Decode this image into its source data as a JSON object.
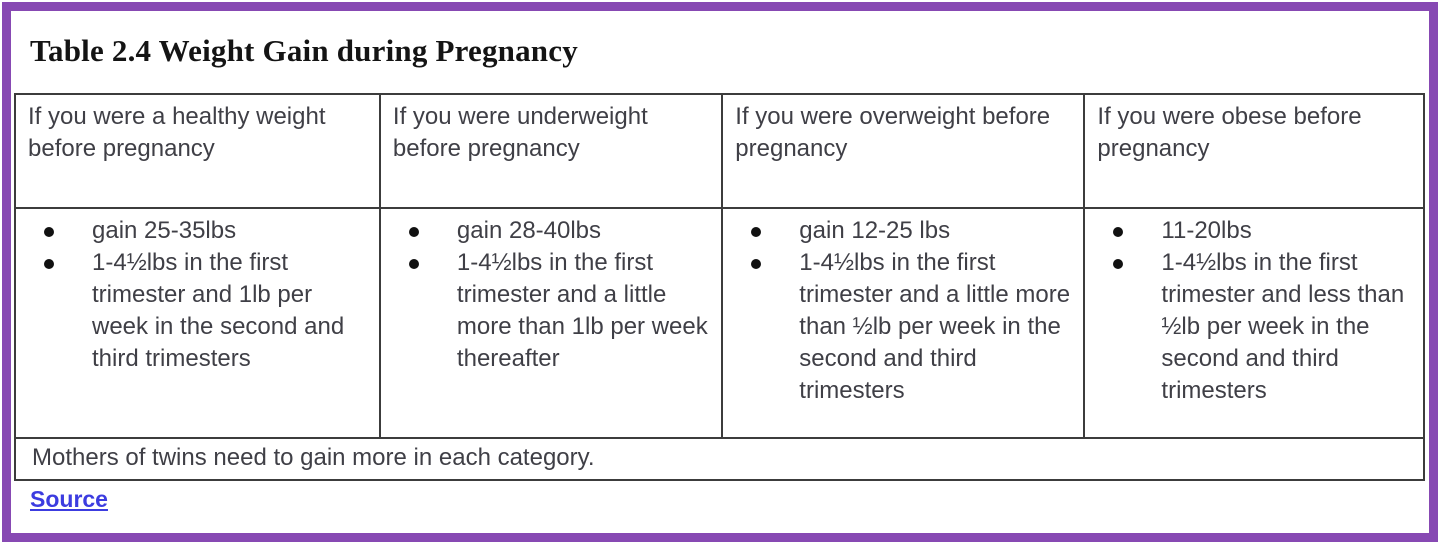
{
  "page": {
    "title": "Table 2.4 Weight Gain during Pregnancy",
    "frame_border_color": "#8749b3",
    "table_border_color": "#3c3c3c",
    "link_color": "#3c3ce0"
  },
  "table": {
    "columns": [
      {
        "header": "If you were a healthy weight before pregnancy",
        "bullets": [
          "gain 25-35lbs",
          "1-4½lbs in the first trimester and 1lb per week in the second and third trimesters"
        ]
      },
      {
        "header": "If you were underweight before pregnancy",
        "bullets": [
          "gain 28-40lbs",
          "1-4½lbs in the first trimester and a little more than 1lb per week thereafter"
        ]
      },
      {
        "header": "If you were overweight before pregnancy",
        "bullets": [
          "gain 12-25 lbs",
          "1-4½lbs in the first trimester and a little more than ½lb per week in the second and third trimesters"
        ]
      },
      {
        "header": "If you were obese before pregnancy",
        "bullets": [
          "11-20lbs",
          "1-4½lbs in the first trimester and less than ½lb per week in the second and third trimesters"
        ]
      }
    ],
    "footer_note": "Mothers of twins need to gain more in each category.",
    "source_label": "Source"
  }
}
